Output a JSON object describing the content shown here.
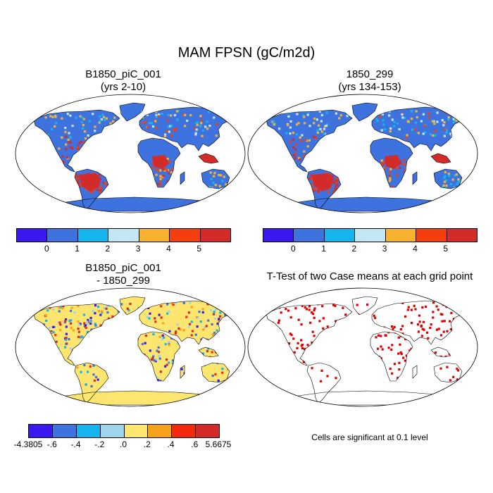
{
  "title": "MAM FPSN (gC/m2d)",
  "panels": [
    {
      "title_line1": "B1850_piC_001",
      "title_line2": "(yrs 2-10)"
    },
    {
      "title_line1": "1850_299",
      "title_line2": "(yrs 134-153)"
    },
    {
      "title_line1": "B1850_piC_001",
      "title_line2": "- 1850_299"
    },
    {
      "title_line1": "T-Test of two Case means at each grid point",
      "title_line2": ""
    }
  ],
  "colorbar_top": {
    "colors": [
      "#3b18f0",
      "#3e72df",
      "#16b4ee",
      "#c5e6f5",
      "#f7b330",
      "#f33f0e",
      "#d22b2a"
    ],
    "labels": [
      "0",
      "1",
      "2",
      "3",
      "4",
      "5"
    ]
  },
  "colorbar_diff": {
    "colors": [
      "#3b18f0",
      "#3e72df",
      "#16b4ee",
      "#9fd4ee",
      "#fde66f",
      "#f8a21b",
      "#f42a0f",
      "#d22b2a"
    ],
    "labels": [
      "-4.3805",
      "-.6",
      "-.4",
      "-.2",
      ".0",
      ".2",
      ".4",
      ".6",
      "5.6675"
    ]
  },
  "significance_note": "Cells are significant at 0.1 level",
  "colors": {
    "ocean": "#ffffff",
    "outline": "#000000",
    "significant": "#e00000"
  }
}
